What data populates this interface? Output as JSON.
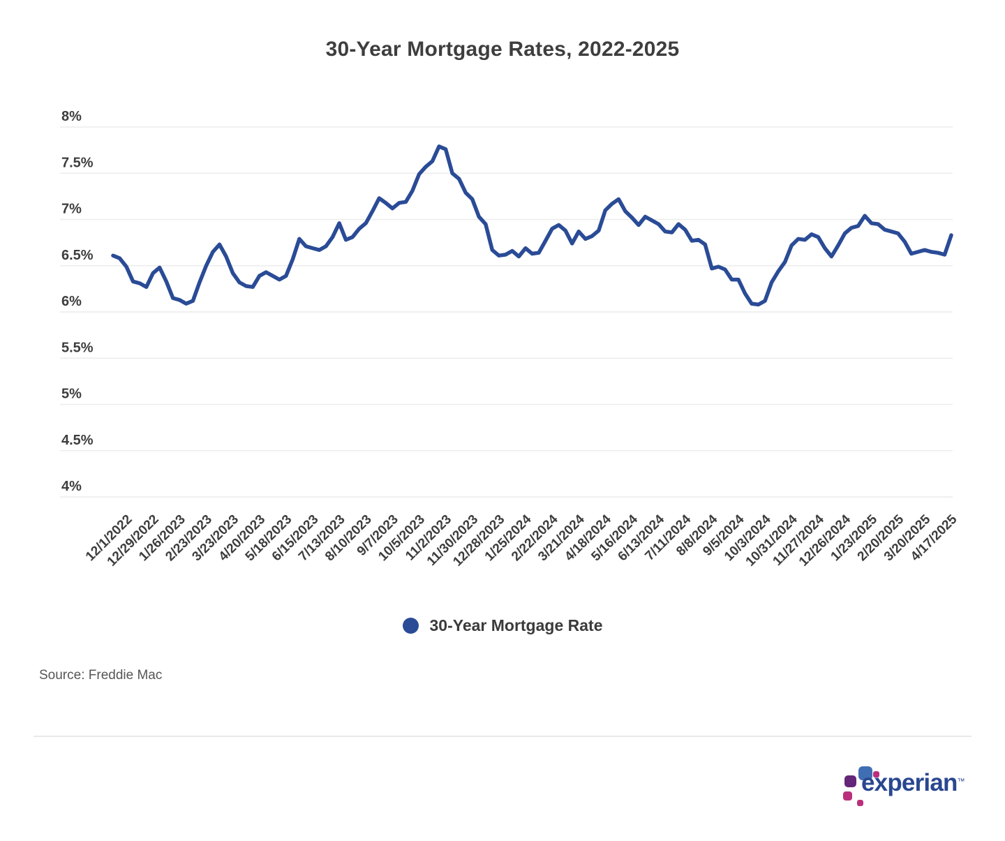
{
  "title": "30-Year Mortgage Rates, 2022-2025",
  "legend": {
    "label": "30-Year Mortgage Rate",
    "marker_color": "#2a4b96"
  },
  "source": {
    "text": "Source: Freddie Mac"
  },
  "logo": {
    "brand": "experian",
    "trademark": "™"
  },
  "colors": {
    "line": "#2a4b96",
    "gridline": "#ececec",
    "axis_text": "#3d3d3d",
    "title_text": "#3e3e3e",
    "background": "#ffffff"
  },
  "chart_data": {
    "type": "line",
    "title": "30-Year Mortgage Rates, 2022-2025",
    "xlabel": "",
    "ylabel": "",
    "ylim": [
      4,
      8
    ],
    "grid": "horizontal",
    "legend_position": "bottom-center",
    "y_ticks": [
      {
        "label": "8%",
        "value": 8
      },
      {
        "label": "7.5%",
        "value": 7.5
      },
      {
        "label": "7%",
        "value": 7
      },
      {
        "label": "6.5%",
        "value": 6.5
      },
      {
        "label": "6%",
        "value": 6
      },
      {
        "label": "5.5%",
        "value": 5.5
      },
      {
        "label": "5%",
        "value": 5
      },
      {
        "label": "4.5%",
        "value": 4.5
      },
      {
        "label": "4%",
        "value": 4
      }
    ],
    "x_tick_labels": [
      "12/1/2022",
      "12/29/2022",
      "1/26/2023",
      "2/23/2023",
      "3/23/2023",
      "4/20/2023",
      "5/18/2023",
      "6/15/2023",
      "7/13/2023",
      "8/10/2023",
      "9/7/2023",
      "10/5/2023",
      "11/2/2023",
      "11/30/2023",
      "12/28/2023",
      "1/25/2024",
      "2/22/2024",
      "3/21/2024",
      "4/18/2024",
      "5/16/2024",
      "6/13/2024",
      "7/11/2024",
      "8/8/2024",
      "9/5/2024",
      "10/3/2024",
      "10/31/2024",
      "11/27/2024",
      "12/26/2024",
      "1/23/2025",
      "2/20/2025",
      "3/20/2025",
      "4/17/2025"
    ],
    "x_tick_start_index": 2,
    "x_tick_step": 4,
    "series": [
      {
        "name": "30-Year Mortgage Rate",
        "color": "#2a4b96",
        "dates": [
          "11/17/2022",
          "11/23/2022",
          "12/1/2022",
          "12/8/2022",
          "12/15/2022",
          "12/22/2022",
          "12/29/2022",
          "1/5/2023",
          "1/12/2023",
          "1/19/2023",
          "1/26/2023",
          "2/2/2023",
          "2/9/2023",
          "2/16/2023",
          "2/23/2023",
          "3/2/2023",
          "3/9/2023",
          "3/16/2023",
          "3/23/2023",
          "3/30/2023",
          "4/6/2023",
          "4/13/2023",
          "4/20/2023",
          "4/27/2023",
          "5/4/2023",
          "5/11/2023",
          "5/18/2023",
          "5/25/2023",
          "6/1/2023",
          "6/8/2023",
          "6/15/2023",
          "6/22/2023",
          "6/29/2023",
          "7/6/2023",
          "7/13/2023",
          "7/20/2023",
          "7/27/2023",
          "8/3/2023",
          "8/10/2023",
          "8/17/2023",
          "8/24/2023",
          "8/31/2023",
          "9/7/2023",
          "9/14/2023",
          "9/21/2023",
          "9/28/2023",
          "10/5/2023",
          "10/12/2023",
          "10/19/2023",
          "10/26/2023",
          "11/2/2023",
          "11/9/2023",
          "11/16/2023",
          "11/22/2023",
          "11/30/2023",
          "12/7/2023",
          "12/14/2023",
          "12/21/2023",
          "12/28/2023",
          "1/4/2024",
          "1/11/2024",
          "1/18/2024",
          "1/25/2024",
          "2/1/2024",
          "2/8/2024",
          "2/15/2024",
          "2/22/2024",
          "2/29/2024",
          "3/7/2024",
          "3/14/2024",
          "3/21/2024",
          "3/28/2024",
          "4/4/2024",
          "4/11/2024",
          "4/18/2024",
          "4/25/2024",
          "5/2/2024",
          "5/9/2024",
          "5/16/2024",
          "5/23/2024",
          "5/30/2024",
          "6/6/2024",
          "6/13/2024",
          "6/20/2024",
          "6/27/2024",
          "7/3/2024",
          "7/11/2024",
          "7/18/2024",
          "7/25/2024",
          "8/1/2024",
          "8/8/2024",
          "8/15/2024",
          "8/22/2024",
          "8/29/2024",
          "9/5/2024",
          "9/12/2024",
          "9/19/2024",
          "9/26/2024",
          "10/3/2024",
          "10/10/2024",
          "10/17/2024",
          "10/24/2024",
          "10/31/2024",
          "11/7/2024",
          "11/14/2024",
          "11/21/2024",
          "11/27/2024",
          "12/5/2024",
          "12/12/2024",
          "12/19/2024",
          "12/26/2024",
          "1/2/2025",
          "1/9/2025",
          "1/16/2025",
          "1/23/2025",
          "1/30/2025",
          "2/6/2025",
          "2/13/2025",
          "2/20/2025",
          "2/27/2025",
          "3/6/2025",
          "3/13/2025",
          "3/20/2025",
          "3/27/2025",
          "4/3/2025",
          "4/10/2025",
          "4/17/2025"
        ],
        "values": [
          6.61,
          6.58,
          6.49,
          6.33,
          6.31,
          6.27,
          6.42,
          6.48,
          6.33,
          6.15,
          6.13,
          6.09,
          6.12,
          6.32,
          6.5,
          6.65,
          6.73,
          6.6,
          6.42,
          6.32,
          6.28,
          6.27,
          6.39,
          6.43,
          6.39,
          6.35,
          6.39,
          6.57,
          6.79,
          6.71,
          6.69,
          6.67,
          6.71,
          6.81,
          6.96,
          6.78,
          6.81,
          6.9,
          6.96,
          7.09,
          7.23,
          7.18,
          7.12,
          7.18,
          7.19,
          7.31,
          7.49,
          7.57,
          7.63,
          7.79,
          7.76,
          7.5,
          7.44,
          7.29,
          7.22,
          7.03,
          6.95,
          6.67,
          6.61,
          6.62,
          6.66,
          6.6,
          6.69,
          6.63,
          6.64,
          6.77,
          6.9,
          6.94,
          6.88,
          6.74,
          6.87,
          6.79,
          6.82,
          6.88,
          7.1,
          7.17,
          7.22,
          7.09,
          7.02,
          6.94,
          7.03,
          6.99,
          6.95,
          6.87,
          6.86,
          6.95,
          6.89,
          6.77,
          6.78,
          6.73,
          6.47,
          6.49,
          6.46,
          6.35,
          6.35,
          6.2,
          6.09,
          6.08,
          6.12,
          6.32,
          6.44,
          6.54,
          6.72,
          6.79,
          6.78,
          6.84,
          6.81,
          6.69,
          6.6,
          6.72,
          6.85,
          6.91,
          6.93,
          7.04,
          6.96,
          6.95,
          6.89,
          6.87,
          6.85,
          6.76,
          6.63,
          6.65,
          6.67,
          6.65,
          6.64,
          6.62,
          6.83
        ]
      }
    ]
  }
}
